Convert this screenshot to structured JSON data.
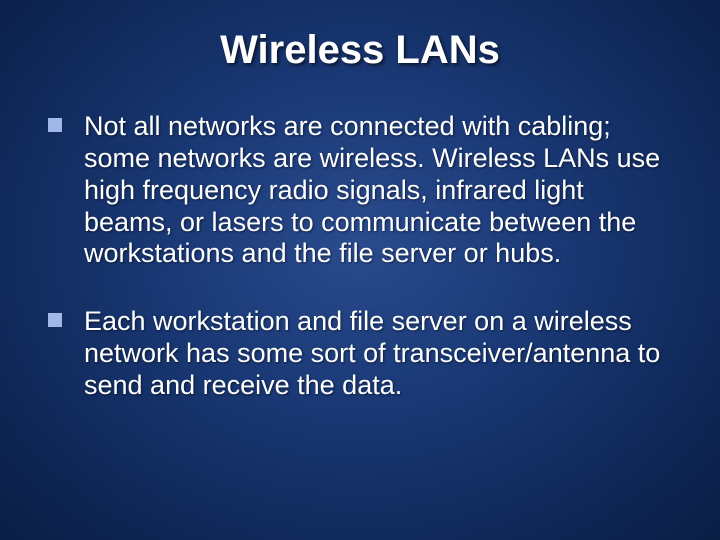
{
  "slide": {
    "title": "Wireless LANs",
    "title_fontsize": 40,
    "title_color": "#ffffff",
    "body_fontsize": 27,
    "body_color": "#ffffff",
    "bullet_marker_color": "#9fb8e8",
    "background_gradient": {
      "inner": "#2a4b8d",
      "mid": "#1b3a78",
      "outer": "#0a1d44"
    },
    "bullets": [
      "Not all networks are connected with cabling; some networks are wireless. Wireless LANs use high frequency radio signals, infrared light beams, or lasers to communicate between the workstations and the file server or hubs.",
      "Each workstation and file server on a wireless network has some sort of transceiver/antenna to send and receive the data."
    ]
  }
}
